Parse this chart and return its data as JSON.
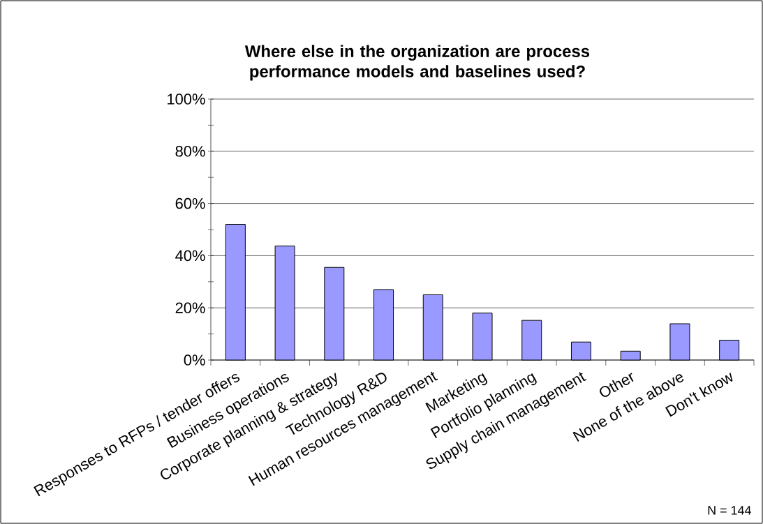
{
  "chart_data": {
    "type": "bar",
    "title": "Where else in the organization are process performance models and baselines used?",
    "categories": [
      "Responses to RFPs / tender offers",
      "Business operations",
      "Corporate planning & strategy",
      "Technology R&D",
      "Human resources management",
      "Marketing",
      "Portfolio planning",
      "Supply chain management",
      "Other",
      "None of the above",
      "Don't know"
    ],
    "values": [
      52,
      43.7,
      35.5,
      27,
      25,
      18,
      15.2,
      6.9,
      3.4,
      13.9,
      7.6
    ],
    "color": "#9999ff",
    "ylim": [
      0,
      100
    ],
    "yticks": [
      {
        "value": 0,
        "label": "0%"
      },
      {
        "value": 10,
        "label": null
      },
      {
        "value": 20,
        "label": "20%"
      },
      {
        "value": 30,
        "label": null
      },
      {
        "value": 40,
        "label": "40%"
      },
      {
        "value": 50,
        "label": null
      },
      {
        "value": 60,
        "label": "60%"
      },
      {
        "value": 70,
        "label": null
      },
      {
        "value": 80,
        "label": "80%"
      },
      {
        "value": 90,
        "label": null
      },
      {
        "value": 100,
        "label": "100%"
      }
    ],
    "grid": "y",
    "annotations": [
      "N = 144"
    ]
  }
}
